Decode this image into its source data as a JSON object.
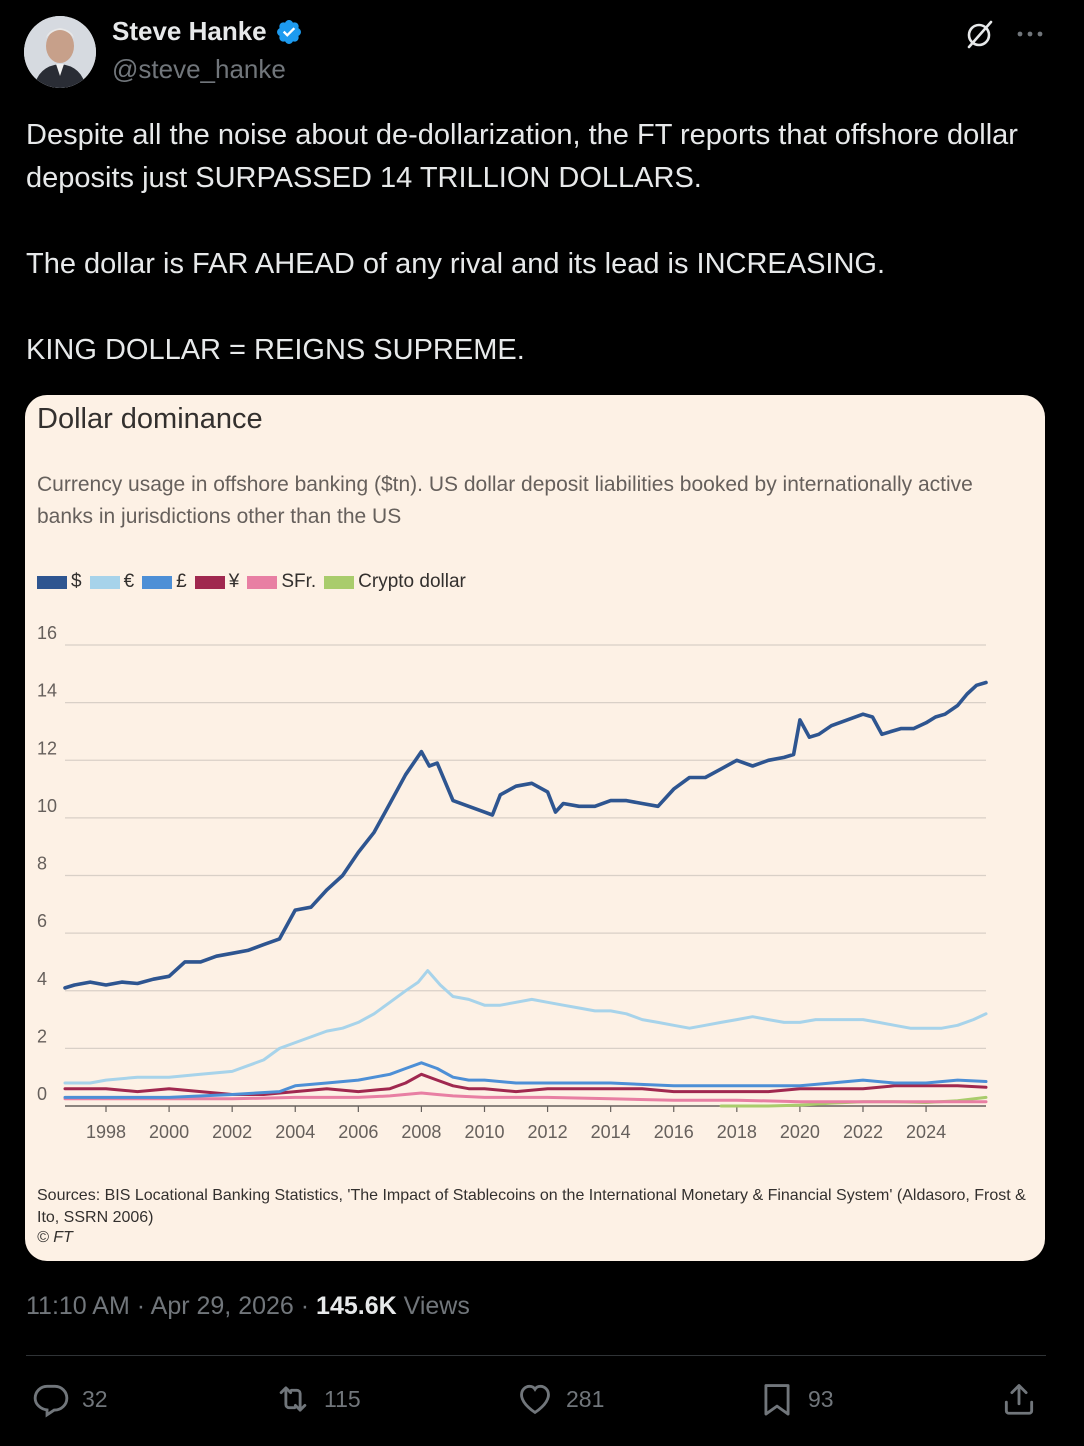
{
  "author": {
    "display_name": "Steve Hanke",
    "handle": "@steve_hanke"
  },
  "tweet": {
    "paragraphs": [
      "Despite all the noise about de-dollarization, the FT reports that offshore dollar deposits just SURPASSED 14 TRILLION DOLLARS.",
      "The dollar is FAR AHEAD of any rival and its lead is INCREASING.",
      "KING DOLLAR = REIGNS SUPREME."
    ],
    "time": "11:10 AM",
    "date": "Apr 29, 2026",
    "views_count": "145.6K",
    "views_label": "Views"
  },
  "actions": {
    "replies": "32",
    "reposts": "115",
    "likes": "281",
    "bookmarks": "93"
  },
  "icons": [
    "verified-badge-icon",
    "grok-icon",
    "more-icon",
    "reply-icon",
    "repost-icon",
    "like-icon",
    "bookmark-icon",
    "share-icon"
  ],
  "colors": {
    "background": "#000000",
    "text": "#e7e9ea",
    "muted": "#71767b",
    "verified": "#1d9bf0",
    "card_bg": "#fdf1e5"
  },
  "chart_data": {
    "type": "line",
    "title": "Dollar dominance",
    "subtitle": "Currency usage in offshore banking ($tn). US dollar deposit liabilities booked by internationally active banks in jurisdictions other than the US",
    "source": "Sources: BIS Locational Banking Statistics, 'The Impact of Stablecoins on the International Monetary & Financial System' (Aldasoro, Frost & Ito, SSRN 2006)",
    "copyright": "© FT",
    "xlim": [
      1996.7,
      2025.9
    ],
    "ylim": [
      0,
      16
    ],
    "yticks": [
      0,
      2,
      4,
      6,
      8,
      10,
      12,
      14,
      16
    ],
    "xticks": [
      1998,
      2000,
      2002,
      2004,
      2006,
      2008,
      2010,
      2012,
      2014,
      2016,
      2018,
      2020,
      2022,
      2024
    ],
    "grid": true,
    "legend_position": "top-left",
    "series": [
      {
        "name": "$",
        "color": "#2e5590",
        "x": [
          1996.7,
          1997.0,
          1997.5,
          1998.0,
          1998.5,
          1999.0,
          1999.5,
          2000.0,
          2000.5,
          2001.0,
          2001.5,
          2002.0,
          2002.5,
          2003.0,
          2003.5,
          2004.0,
          2004.5,
          2005.0,
          2005.5,
          2006.0,
          2006.5,
          2007.0,
          2007.5,
          2008.0,
          2008.25,
          2008.5,
          2009.0,
          2009.5,
          2010.0,
          2010.25,
          2010.5,
          2011.0,
          2011.5,
          2012.0,
          2012.25,
          2012.5,
          2013.0,
          2013.5,
          2014.0,
          2014.5,
          2015.0,
          2015.5,
          2016.0,
          2016.5,
          2017.0,
          2017.5,
          2018.0,
          2018.5,
          2019.0,
          2019.5,
          2019.8,
          2020.0,
          2020.3,
          2020.6,
          2021.0,
          2021.5,
          2022.0,
          2022.3,
          2022.6,
          2022.9,
          2023.2,
          2023.6,
          2024.0,
          2024.3,
          2024.6,
          2025.0,
          2025.3,
          2025.6,
          2025.9
        ],
        "values": [
          4.1,
          4.2,
          4.3,
          4.2,
          4.3,
          4.25,
          4.4,
          4.5,
          5.0,
          5.0,
          5.2,
          5.3,
          5.4,
          5.6,
          5.8,
          6.8,
          6.9,
          7.5,
          8.0,
          8.8,
          9.5,
          10.5,
          11.5,
          12.3,
          11.8,
          11.9,
          10.6,
          10.4,
          10.2,
          10.1,
          10.8,
          11.1,
          11.2,
          10.9,
          10.2,
          10.5,
          10.4,
          10.4,
          10.6,
          10.6,
          10.5,
          10.4,
          11.0,
          11.4,
          11.4,
          11.7,
          12.0,
          11.8,
          12.0,
          12.1,
          12.2,
          13.4,
          12.8,
          12.9,
          13.2,
          13.4,
          13.6,
          13.5,
          12.9,
          13.0,
          13.1,
          13.1,
          13.3,
          13.5,
          13.6,
          13.9,
          14.3,
          14.6,
          14.7
        ]
      },
      {
        "name": "€",
        "color": "#a7d3ea",
        "x": [
          1996.7,
          1997.5,
          1998.0,
          1999.0,
          2000.0,
          2001.0,
          2002.0,
          2002.5,
          2003.0,
          2003.5,
          2004.0,
          2004.5,
          2005.0,
          2005.5,
          2006.0,
          2006.5,
          2007.0,
          2007.5,
          2007.9,
          2008.2,
          2008.6,
          2009.0,
          2009.5,
          2010.0,
          2010.5,
          2011.0,
          2011.5,
          2012.0,
          2012.5,
          2013.0,
          2013.5,
          2014.0,
          2014.5,
          2015.0,
          2015.5,
          2016.0,
          2016.5,
          2017.0,
          2017.5,
          2018.0,
          2018.5,
          2019.0,
          2019.5,
          2020.0,
          2020.5,
          2021.0,
          2021.5,
          2022.0,
          2022.5,
          2023.0,
          2023.5,
          2024.0,
          2024.5,
          2025.0,
          2025.5,
          2025.9
        ],
        "values": [
          0.8,
          0.8,
          0.9,
          1.0,
          1.0,
          1.1,
          1.2,
          1.4,
          1.6,
          2.0,
          2.2,
          2.4,
          2.6,
          2.7,
          2.9,
          3.2,
          3.6,
          4.0,
          4.3,
          4.7,
          4.2,
          3.8,
          3.7,
          3.5,
          3.5,
          3.6,
          3.7,
          3.6,
          3.5,
          3.4,
          3.3,
          3.3,
          3.2,
          3.0,
          2.9,
          2.8,
          2.7,
          2.8,
          2.9,
          3.0,
          3.1,
          3.0,
          2.9,
          2.9,
          3.0,
          3.0,
          3.0,
          3.0,
          2.9,
          2.8,
          2.7,
          2.7,
          2.7,
          2.8,
          3.0,
          3.2
        ]
      },
      {
        "name": "£",
        "color": "#4d8fd6",
        "x": [
          1996.7,
          1998.0,
          2000.0,
          2002.0,
          2003.5,
          2004.0,
          2005.0,
          2006.0,
          2007.0,
          2007.5,
          2008.0,
          2008.5,
          2009.0,
          2009.5,
          2010.0,
          2011.0,
          2012.0,
          2014.0,
          2016.0,
          2018.0,
          2020.0,
          2021.0,
          2022.0,
          2023.0,
          2024.0,
          2025.0,
          2025.9
        ],
        "values": [
          0.3,
          0.3,
          0.3,
          0.4,
          0.5,
          0.7,
          0.8,
          0.9,
          1.1,
          1.3,
          1.5,
          1.3,
          1.0,
          0.9,
          0.9,
          0.8,
          0.8,
          0.8,
          0.7,
          0.7,
          0.7,
          0.8,
          0.9,
          0.8,
          0.8,
          0.9,
          0.85
        ]
      },
      {
        "name": "¥",
        "color": "#a0284f",
        "x": [
          1996.7,
          1998.0,
          1999.0,
          2000.0,
          2001.0,
          2002.0,
          2003.0,
          2004.0,
          2005.0,
          2006.0,
          2007.0,
          2007.5,
          2008.0,
          2008.5,
          2009.0,
          2009.5,
          2010.0,
          2011.0,
          2012.0,
          2013.0,
          2014.0,
          2015.0,
          2016.0,
          2017.0,
          2018.0,
          2019.0,
          2020.0,
          2021.0,
          2022.0,
          2023.0,
          2024.0,
          2025.0,
          2025.9
        ],
        "values": [
          0.6,
          0.6,
          0.5,
          0.6,
          0.5,
          0.4,
          0.4,
          0.5,
          0.6,
          0.5,
          0.6,
          0.8,
          1.1,
          0.9,
          0.7,
          0.6,
          0.6,
          0.5,
          0.6,
          0.6,
          0.6,
          0.6,
          0.5,
          0.5,
          0.5,
          0.5,
          0.6,
          0.6,
          0.6,
          0.7,
          0.7,
          0.7,
          0.65
        ]
      },
      {
        "name": "SFr.",
        "color": "#e87fa3",
        "x": [
          1996.7,
          1998.0,
          2000.0,
          2002.0,
          2004.0,
          2006.0,
          2007.0,
          2008.0,
          2008.5,
          2009.0,
          2010.0,
          2012.0,
          2014.0,
          2016.0,
          2018.0,
          2020.0,
          2022.0,
          2024.0,
          2025.9
        ],
        "values": [
          0.25,
          0.25,
          0.25,
          0.25,
          0.3,
          0.3,
          0.35,
          0.45,
          0.4,
          0.35,
          0.3,
          0.3,
          0.25,
          0.2,
          0.2,
          0.15,
          0.15,
          0.15,
          0.15
        ]
      },
      {
        "name": "Crypto dollar",
        "color": "#a9cc6c",
        "x": [
          2017.5,
          2019.0,
          2020.0,
          2021.0,
          2022.0,
          2023.0,
          2024.0,
          2025.0,
          2025.9
        ],
        "values": [
          0.0,
          0.0,
          0.03,
          0.1,
          0.15,
          0.15,
          0.12,
          0.18,
          0.3
        ]
      }
    ]
  }
}
